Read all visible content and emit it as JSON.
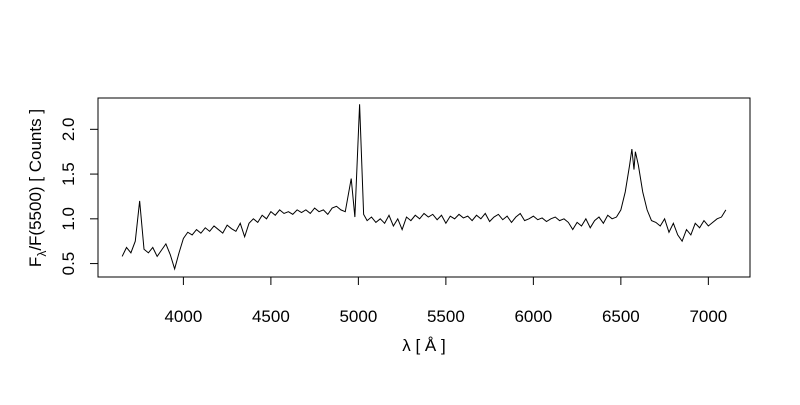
{
  "chart_data": {
    "type": "line",
    "xlabel": "λ [ Å ]",
    "ylabel": [
      "F",
      "λ",
      "/F(5500) [ Counts ]"
    ],
    "color": "#000000",
    "xlim": [
      3512,
      7238
    ],
    "ylim": [
      0.35,
      2.35
    ],
    "xticks": [
      4000,
      4500,
      5000,
      5500,
      6000,
      6500,
      7000
    ],
    "yticks": [
      0.5,
      {
        "value": 1,
        "label": "1.0"
      },
      1.5,
      {
        "value": 2,
        "label": "2.0"
      }
    ],
    "x": [
      3650,
      3675,
      3700,
      3725,
      3750,
      3775,
      3800,
      3825,
      3850,
      3875,
      3900,
      3925,
      3950,
      3975,
      4000,
      4025,
      4050,
      4075,
      4100,
      4125,
      4150,
      4175,
      4200,
      4225,
      4250,
      4275,
      4300,
      4325,
      4350,
      4375,
      4400,
      4425,
      4450,
      4475,
      4500,
      4525,
      4550,
      4575,
      4600,
      4625,
      4650,
      4675,
      4700,
      4725,
      4750,
      4775,
      4800,
      4825,
      4850,
      4875,
      4900,
      4925,
      4959,
      4980,
      5007,
      5030,
      5050,
      5075,
      5100,
      5125,
      5150,
      5175,
      5200,
      5225,
      5250,
      5275,
      5300,
      5325,
      5350,
      5375,
      5400,
      5425,
      5450,
      5475,
      5500,
      5525,
      5550,
      5575,
      5600,
      5625,
      5650,
      5675,
      5700,
      5725,
      5750,
      5775,
      5800,
      5825,
      5850,
      5875,
      5900,
      5925,
      5950,
      5975,
      6000,
      6025,
      6050,
      6075,
      6100,
      6125,
      6150,
      6175,
      6200,
      6225,
      6250,
      6275,
      6300,
      6325,
      6350,
      6375,
      6400,
      6425,
      6450,
      6475,
      6500,
      6525,
      6550,
      6563,
      6575,
      6583,
      6600,
      6625,
      6650,
      6675,
      6700,
      6725,
      6750,
      6775,
      6800,
      6825,
      6850,
      6875,
      6900,
      6925,
      6950,
      6975,
      7000,
      7025,
      7050,
      7075,
      7100
    ],
    "values": [
      0.58,
      0.68,
      0.62,
      0.75,
      1.2,
      0.66,
      0.62,
      0.68,
      0.58,
      0.65,
      0.72,
      0.6,
      0.44,
      0.62,
      0.78,
      0.85,
      0.82,
      0.88,
      0.84,
      0.9,
      0.86,
      0.92,
      0.88,
      0.84,
      0.93,
      0.89,
      0.86,
      0.95,
      0.8,
      0.95,
      1.0,
      0.96,
      1.04,
      1.0,
      1.08,
      1.04,
      1.1,
      1.06,
      1.08,
      1.05,
      1.1,
      1.07,
      1.1,
      1.06,
      1.12,
      1.08,
      1.1,
      1.05,
      1.12,
      1.14,
      1.1,
      1.08,
      1.45,
      1.02,
      2.28,
      1.05,
      0.98,
      1.02,
      0.96,
      1.0,
      0.95,
      1.04,
      0.92,
      1.0,
      0.88,
      1.02,
      0.98,
      1.04,
      1.0,
      1.06,
      1.02,
      1.05,
      0.99,
      1.04,
      0.95,
      1.03,
      1.0,
      1.05,
      1.01,
      1.03,
      0.98,
      1.04,
      1.0,
      1.06,
      0.97,
      1.02,
      1.05,
      0.99,
      1.03,
      0.96,
      1.02,
      1.06,
      0.98,
      1.0,
      1.03,
      0.99,
      1.01,
      0.97,
      1.0,
      1.02,
      0.98,
      1.0,
      0.96,
      0.88,
      0.96,
      0.92,
      1.0,
      0.9,
      0.98,
      1.02,
      0.95,
      1.04,
      1.0,
      1.02,
      1.1,
      1.3,
      1.6,
      1.78,
      1.55,
      1.75,
      1.6,
      1.3,
      1.1,
      0.98,
      0.96,
      0.92,
      1.0,
      0.85,
      0.95,
      0.82,
      0.75,
      0.88,
      0.82,
      0.95,
      0.9,
      0.98,
      0.92,
      0.96,
      1.0,
      1.02,
      1.1
    ]
  }
}
